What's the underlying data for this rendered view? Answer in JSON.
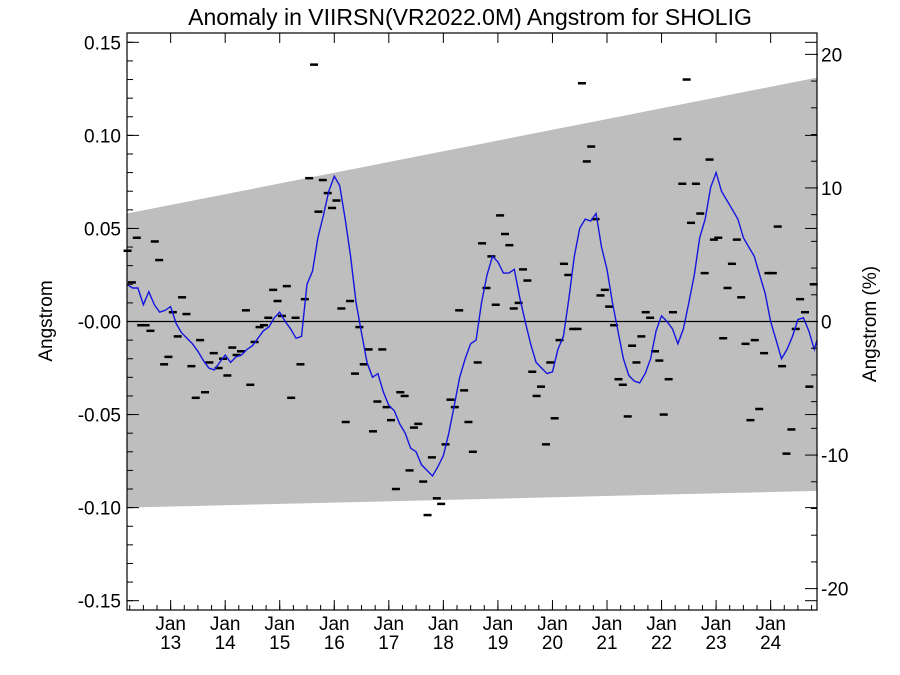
{
  "chart_data": {
    "type": "line",
    "title": "Anomaly in VIIRSN(VR2022.0M) Angstrom for SHOLIG",
    "ylabel": "Angstrom",
    "y2label": "Angstrom (%)",
    "ylim": [
      -0.155,
      0.155
    ],
    "y2lim": [
      -21.6,
      21.6
    ],
    "yticks": [
      "0.15",
      "0.10",
      "0.05",
      "-0.00",
      "-0.05",
      "-0.10",
      "-0.15"
    ],
    "y2ticks": [
      "20",
      "10",
      "0",
      "-10",
      "-20"
    ],
    "x_range": [
      2012.2,
      2024.85
    ],
    "xtick_years": [
      2013,
      2014,
      2015,
      2016,
      2017,
      2018,
      2019,
      2020,
      2021,
      2022,
      2023,
      2024
    ],
    "xtick_labels": [
      {
        "month": "Jan",
        "year": "13"
      },
      {
        "month": "Jan",
        "year": "14"
      },
      {
        "month": "Jan",
        "year": "15"
      },
      {
        "month": "Jan",
        "year": "16"
      },
      {
        "month": "Jan",
        "year": "17"
      },
      {
        "month": "Jan",
        "year": "18"
      },
      {
        "month": "Jan",
        "year": "19"
      },
      {
        "month": "Jan",
        "year": "20"
      },
      {
        "month": "Jan",
        "year": "21"
      },
      {
        "month": "Jan",
        "year": "22"
      },
      {
        "month": "Jan",
        "year": "23"
      },
      {
        "month": "Jan",
        "year": "24"
      }
    ],
    "envelope": {
      "upper": [
        [
          2012.2,
          0.058
        ],
        [
          2024.85,
          0.131
        ]
      ],
      "lower": [
        [
          2012.2,
          -0.1
        ],
        [
          2024.85,
          -0.091
        ]
      ],
      "color": "#bebebe"
    },
    "zero_line": 0,
    "series": [
      {
        "kind": "monthly_values",
        "color": "#000000",
        "points": [
          [
            2012.21,
            0.038
          ],
          [
            2012.29,
            0.021
          ],
          [
            2012.38,
            0.045
          ],
          [
            2012.46,
            -0.002
          ],
          [
            2012.54,
            -0.002
          ],
          [
            2012.63,
            -0.005
          ],
          [
            2012.71,
            0.043
          ],
          [
            2012.79,
            0.033
          ],
          [
            2012.88,
            -0.023
          ],
          [
            2012.96,
            -0.019
          ],
          [
            2013.04,
            0.005
          ],
          [
            2013.13,
            -0.008
          ],
          [
            2013.21,
            0.013
          ],
          [
            2013.29,
            0.004
          ],
          [
            2013.38,
            -0.024
          ],
          [
            2013.46,
            -0.041
          ],
          [
            2013.54,
            -0.01
          ],
          [
            2013.63,
            -0.038
          ],
          [
            2013.71,
            -0.022
          ],
          [
            2013.79,
            -0.017
          ],
          [
            2013.88,
            -0.025
          ],
          [
            2013.96,
            -0.02
          ],
          [
            2014.04,
            -0.029
          ],
          [
            2014.13,
            -0.014
          ],
          [
            2014.21,
            -0.018
          ],
          [
            2014.29,
            -0.016
          ],
          [
            2014.38,
            0.006
          ],
          [
            2014.46,
            -0.034
          ],
          [
            2014.54,
            -0.011
          ],
          [
            2014.63,
            -0.003
          ],
          [
            2014.71,
            -0.002
          ],
          [
            2014.79,
            0.002
          ],
          [
            2014.88,
            0.017
          ],
          [
            2014.96,
            0.011
          ],
          [
            2015.04,
            0.003
          ],
          [
            2015.13,
            0.019
          ],
          [
            2015.21,
            -0.041
          ],
          [
            2015.29,
            0.002
          ],
          [
            2015.38,
            -0.023
          ],
          [
            2015.46,
            0.012
          ],
          [
            2015.54,
            0.077
          ],
          [
            2015.63,
            0.138
          ],
          [
            2015.71,
            0.059
          ],
          [
            2015.79,
            0.076
          ],
          [
            2015.88,
            0.069
          ],
          [
            2015.96,
            0.061
          ],
          [
            2016.04,
            0.065
          ],
          [
            2016.13,
            0.007
          ],
          [
            2016.21,
            -0.054
          ],
          [
            2016.29,
            0.011
          ],
          [
            2016.38,
            -0.028
          ],
          [
            2016.46,
            -0.003
          ],
          [
            2016.54,
            -0.023
          ],
          [
            2016.63,
            -0.015
          ],
          [
            2016.71,
            -0.059
          ],
          [
            2016.79,
            -0.043
          ],
          [
            2016.88,
            -0.015
          ],
          [
            2016.96,
            -0.046
          ],
          [
            2017.04,
            -0.053
          ],
          [
            2017.13,
            -0.09
          ],
          [
            2017.21,
            -0.038
          ],
          [
            2017.29,
            -0.04
          ],
          [
            2017.38,
            -0.08
          ],
          [
            2017.46,
            -0.057
          ],
          [
            2017.54,
            -0.055
          ],
          [
            2017.63,
            -0.086
          ],
          [
            2017.71,
            -0.104
          ],
          [
            2017.79,
            -0.073
          ],
          [
            2017.88,
            -0.095
          ],
          [
            2017.96,
            -0.098
          ],
          [
            2018.04,
            -0.066
          ],
          [
            2018.13,
            -0.042
          ],
          [
            2018.21,
            -0.046
          ],
          [
            2018.29,
            0.006
          ],
          [
            2018.38,
            -0.037
          ],
          [
            2018.46,
            -0.054
          ],
          [
            2018.54,
            -0.07
          ],
          [
            2018.63,
            -0.022
          ],
          [
            2018.71,
            0.042
          ],
          [
            2018.79,
            0.018
          ],
          [
            2018.88,
            0.035
          ],
          [
            2018.96,
            0.009
          ],
          [
            2019.04,
            0.057
          ],
          [
            2019.13,
            0.047
          ],
          [
            2019.21,
            0.041
          ],
          [
            2019.29,
            0.007
          ],
          [
            2019.38,
            0.01
          ],
          [
            2019.46,
            0.028
          ],
          [
            2019.54,
            0.022
          ],
          [
            2019.63,
            -0.027
          ],
          [
            2019.71,
            -0.04
          ],
          [
            2019.79,
            -0.035
          ],
          [
            2019.88,
            -0.066
          ],
          [
            2019.96,
            -0.022
          ],
          [
            2020.04,
            -0.052
          ],
          [
            2020.13,
            -0.01
          ],
          [
            2020.21,
            0.031
          ],
          [
            2020.29,
            0.025
          ],
          [
            2020.38,
            -0.004
          ],
          [
            2020.46,
            -0.004
          ],
          [
            2020.54,
            0.128
          ],
          [
            2020.63,
            0.086
          ],
          [
            2020.71,
            0.094
          ],
          [
            2020.79,
            0.055
          ],
          [
            2020.88,
            0.014
          ],
          [
            2020.96,
            0.017
          ],
          [
            2021.04,
            0.008
          ],
          [
            2021.13,
            -0.002
          ],
          [
            2021.21,
            -0.031
          ],
          [
            2021.29,
            -0.034
          ],
          [
            2021.38,
            -0.051
          ],
          [
            2021.46,
            -0.013
          ],
          [
            2021.54,
            -0.022
          ],
          [
            2021.63,
            -0.008
          ],
          [
            2021.71,
            0.005
          ],
          [
            2021.79,
            0.002
          ],
          [
            2021.88,
            -0.016
          ],
          [
            2021.96,
            -0.021
          ],
          [
            2022.04,
            -0.05
          ],
          [
            2022.13,
            -0.031
          ],
          [
            2022.21,
            0.005
          ],
          [
            2022.29,
            0.098
          ],
          [
            2022.38,
            0.074
          ],
          [
            2022.46,
            0.13
          ],
          [
            2022.54,
            0.053
          ],
          [
            2022.63,
            0.074
          ],
          [
            2022.71,
            0.058
          ],
          [
            2022.79,
            0.026
          ],
          [
            2022.88,
            0.087
          ],
          [
            2022.96,
            0.044
          ],
          [
            2023.04,
            0.045
          ],
          [
            2023.13,
            -0.009
          ],
          [
            2023.21,
            0.018
          ],
          [
            2023.29,
            0.031
          ],
          [
            2023.38,
            0.044
          ],
          [
            2023.46,
            0.013
          ],
          [
            2023.54,
            -0.012
          ],
          [
            2023.63,
            -0.053
          ],
          [
            2023.71,
            -0.01
          ],
          [
            2023.79,
            -0.047
          ],
          [
            2023.88,
            -0.017
          ],
          [
            2023.96,
            0.026
          ],
          [
            2024.04,
            0.026
          ],
          [
            2024.13,
            0.051
          ],
          [
            2024.21,
            -0.024
          ],
          [
            2024.29,
            -0.071
          ],
          [
            2024.38,
            -0.058
          ],
          [
            2024.46,
            -0.004
          ],
          [
            2024.54,
            0.012
          ],
          [
            2024.63,
            0.005
          ],
          [
            2024.71,
            -0.035
          ],
          [
            2024.79,
            0.02
          ]
        ]
      },
      {
        "kind": "smoothed",
        "color": "#1515e0",
        "points": [
          [
            2012.2,
            0.02
          ],
          [
            2012.3,
            0.018
          ],
          [
            2012.4,
            0.018
          ],
          [
            2012.5,
            0.009
          ],
          [
            2012.6,
            0.016
          ],
          [
            2012.7,
            0.009
          ],
          [
            2012.8,
            0.005
          ],
          [
            2012.9,
            0.006
          ],
          [
            2013.0,
            0.008
          ],
          [
            2013.1,
            -0.001
          ],
          [
            2013.2,
            -0.006
          ],
          [
            2013.3,
            -0.009
          ],
          [
            2013.4,
            -0.012
          ],
          [
            2013.5,
            -0.016
          ],
          [
            2013.6,
            -0.021
          ],
          [
            2013.7,
            -0.025
          ],
          [
            2013.8,
            -0.026
          ],
          [
            2013.9,
            -0.022
          ],
          [
            2014.0,
            -0.018
          ],
          [
            2014.1,
            -0.022
          ],
          [
            2014.2,
            -0.019
          ],
          [
            2014.3,
            -0.018
          ],
          [
            2014.4,
            -0.015
          ],
          [
            2014.5,
            -0.013
          ],
          [
            2014.6,
            -0.009
          ],
          [
            2014.7,
            -0.005
          ],
          [
            2014.8,
            -0.003
          ],
          [
            2014.9,
            0.002
          ],
          [
            2015.0,
            0.005
          ],
          [
            2015.1,
            0.0
          ],
          [
            2015.2,
            -0.004
          ],
          [
            2015.3,
            -0.009
          ],
          [
            2015.4,
            -0.008
          ],
          [
            2015.5,
            0.02
          ],
          [
            2015.6,
            0.027
          ],
          [
            2015.7,
            0.045
          ],
          [
            2015.8,
            0.057
          ],
          [
            2015.9,
            0.07
          ],
          [
            2016.0,
            0.078
          ],
          [
            2016.1,
            0.073
          ],
          [
            2016.2,
            0.055
          ],
          [
            2016.3,
            0.035
          ],
          [
            2016.4,
            0.01
          ],
          [
            2016.5,
            -0.006
          ],
          [
            2016.6,
            -0.022
          ],
          [
            2016.7,
            -0.03
          ],
          [
            2016.8,
            -0.028
          ],
          [
            2016.9,
            -0.038
          ],
          [
            2017.0,
            -0.045
          ],
          [
            2017.1,
            -0.048
          ],
          [
            2017.2,
            -0.055
          ],
          [
            2017.3,
            -0.06
          ],
          [
            2017.4,
            -0.068
          ],
          [
            2017.5,
            -0.07
          ],
          [
            2017.6,
            -0.077
          ],
          [
            2017.7,
            -0.08
          ],
          [
            2017.8,
            -0.083
          ],
          [
            2017.9,
            -0.078
          ],
          [
            2018.0,
            -0.072
          ],
          [
            2018.1,
            -0.06
          ],
          [
            2018.2,
            -0.045
          ],
          [
            2018.3,
            -0.03
          ],
          [
            2018.4,
            -0.02
          ],
          [
            2018.5,
            -0.012
          ],
          [
            2018.6,
            -0.01
          ],
          [
            2018.7,
            0.01
          ],
          [
            2018.8,
            0.025
          ],
          [
            2018.9,
            0.035
          ],
          [
            2019.0,
            0.032
          ],
          [
            2019.1,
            0.026
          ],
          [
            2019.2,
            0.026
          ],
          [
            2019.3,
            0.028
          ],
          [
            2019.4,
            0.013
          ],
          [
            2019.5,
            0.0
          ],
          [
            2019.6,
            -0.012
          ],
          [
            2019.7,
            -0.022
          ],
          [
            2019.8,
            -0.025
          ],
          [
            2019.9,
            -0.028
          ],
          [
            2020.0,
            -0.027
          ],
          [
            2020.1,
            -0.015
          ],
          [
            2020.2,
            -0.008
          ],
          [
            2020.3,
            0.012
          ],
          [
            2020.4,
            0.035
          ],
          [
            2020.5,
            0.05
          ],
          [
            2020.6,
            0.055
          ],
          [
            2020.7,
            0.054
          ],
          [
            2020.8,
            0.058
          ],
          [
            2020.9,
            0.04
          ],
          [
            2021.0,
            0.028
          ],
          [
            2021.1,
            0.01
          ],
          [
            2021.2,
            -0.005
          ],
          [
            2021.3,
            -0.02
          ],
          [
            2021.4,
            -0.029
          ],
          [
            2021.5,
            -0.032
          ],
          [
            2021.6,
            -0.033
          ],
          [
            2021.7,
            -0.028
          ],
          [
            2021.8,
            -0.02
          ],
          [
            2021.9,
            -0.005
          ],
          [
            2022.0,
            0.003
          ],
          [
            2022.1,
            0.0
          ],
          [
            2022.2,
            -0.004
          ],
          [
            2022.3,
            -0.012
          ],
          [
            2022.4,
            -0.004
          ],
          [
            2022.5,
            0.01
          ],
          [
            2022.6,
            0.025
          ],
          [
            2022.7,
            0.045
          ],
          [
            2022.8,
            0.055
          ],
          [
            2022.9,
            0.072
          ],
          [
            2023.0,
            0.08
          ],
          [
            2023.1,
            0.07
          ],
          [
            2023.2,
            0.065
          ],
          [
            2023.3,
            0.06
          ],
          [
            2023.4,
            0.055
          ],
          [
            2023.5,
            0.045
          ],
          [
            2023.6,
            0.04
          ],
          [
            2023.7,
            0.035
          ],
          [
            2023.8,
            0.025
          ],
          [
            2023.9,
            0.015
          ],
          [
            2024.0,
            0.0
          ],
          [
            2024.1,
            -0.01
          ],
          [
            2024.2,
            -0.02
          ],
          [
            2024.3,
            -0.015
          ],
          [
            2024.4,
            -0.008
          ],
          [
            2024.5,
            0.001
          ],
          [
            2024.6,
            0.002
          ],
          [
            2024.7,
            -0.005
          ],
          [
            2024.8,
            -0.015
          ],
          [
            2024.85,
            -0.01
          ]
        ]
      }
    ]
  }
}
